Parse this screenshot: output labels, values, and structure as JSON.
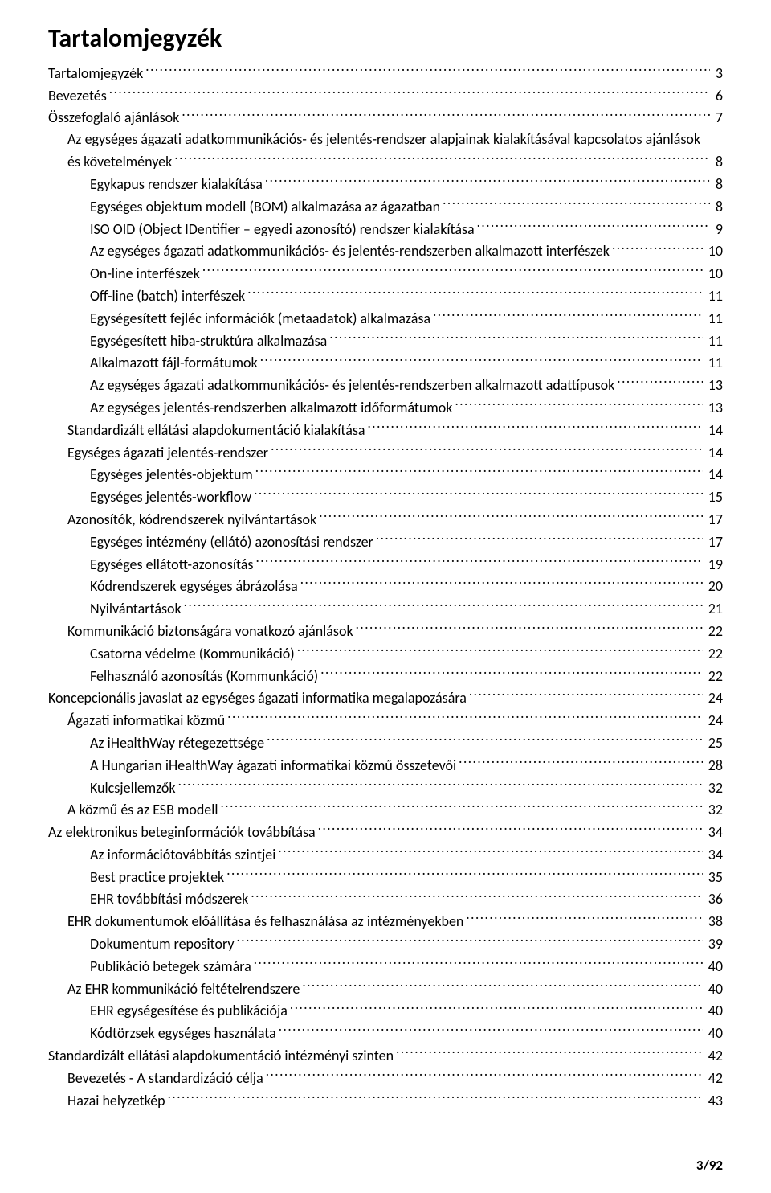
{
  "title": "Tartalomjegyzék",
  "page_footer": "3/92",
  "dot_leader_color": "#000000",
  "text_color": "#000000",
  "background_color": "#ffffff",
  "title_fontsize": 32,
  "line_fontsize": 18,
  "font_family": "Calibri",
  "entries": [
    {
      "indent": 0,
      "label": "Tartalomjegyzék",
      "page": "3"
    },
    {
      "indent": 0,
      "label": "Bevezetés",
      "page": "6"
    },
    {
      "indent": 0,
      "label": "Összefoglaló ajánlások",
      "page": "7"
    },
    {
      "indent": 1,
      "label": "Az egységes ágazati adatkommunikációs- és jelentés-rendszer alapjainak kialakításával kapcsolatos ajánlások és követelmények",
      "page": "8"
    },
    {
      "indent": 2,
      "label": "Egykapus rendszer kialakítása",
      "page": "8"
    },
    {
      "indent": 2,
      "label": "Egységes objektum modell (BOM) alkalmazása az ágazatban",
      "page": "8"
    },
    {
      "indent": 2,
      "label": "ISO OID (Object IDentifier – egyedi azonosító) rendszer kialakítása",
      "page": "9"
    },
    {
      "indent": 2,
      "label": "Az egységes ágazati adatkommunikációs- és jelentés-rendszerben alkalmazott interfészek",
      "page": "10"
    },
    {
      "indent": 2,
      "label": "On-line interfészek",
      "page": "10"
    },
    {
      "indent": 2,
      "label": "Off-line (batch) interfészek",
      "page": "11"
    },
    {
      "indent": 2,
      "label": "Egységesített fejléc információk (metaadatok) alkalmazása",
      "page": "11"
    },
    {
      "indent": 2,
      "label": "Egységesített hiba-struktúra alkalmazása",
      "page": "11"
    },
    {
      "indent": 2,
      "label": "Alkalmazott fájl-formátumok",
      "page": "11"
    },
    {
      "indent": 2,
      "label": "Az egységes ágazati adatkommunikációs- és jelentés-rendszerben alkalmazott adattípusok",
      "page": "13"
    },
    {
      "indent": 2,
      "label": "Az egységes jelentés-rendszerben alkalmazott időformátumok",
      "page": "13"
    },
    {
      "indent": 1,
      "label": "Standardizált ellátási alapdokumentáció kialakítása",
      "page": "14"
    },
    {
      "indent": 1,
      "label": "Egységes ágazati jelentés-rendszer",
      "page": "14"
    },
    {
      "indent": 2,
      "label": "Egységes jelentés-objektum",
      "page": "14"
    },
    {
      "indent": 2,
      "label": "Egységes jelentés-workflow",
      "page": "15"
    },
    {
      "indent": 1,
      "label": "Azonosítók, kódrendszerek nyilvántartások",
      "page": "17"
    },
    {
      "indent": 2,
      "label": "Egységes intézmény (ellátó) azonosítási rendszer",
      "page": "17"
    },
    {
      "indent": 2,
      "label": "Egységes ellátott-azonosítás",
      "page": "19"
    },
    {
      "indent": 2,
      "label": "Kódrendszerek egységes ábrázolása",
      "page": "20"
    },
    {
      "indent": 2,
      "label": "Nyilvántartások",
      "page": "21"
    },
    {
      "indent": 1,
      "label": "Kommunikáció biztonságára vonatkozó ajánlások",
      "page": "22"
    },
    {
      "indent": 2,
      "label": "Csatorna védelme (Kommunikáció)",
      "page": "22"
    },
    {
      "indent": 2,
      "label": "Felhasználó azonosítás (Kommunkáció)",
      "page": "22"
    },
    {
      "indent": 0,
      "label": "Koncepcionális javaslat az egységes ágazati informatika megalapozására",
      "page": "24"
    },
    {
      "indent": 1,
      "label": "Ágazati informatikai közmű",
      "page": "24"
    },
    {
      "indent": 2,
      "label": "Az iHealthWay rétegezettsége",
      "page": "25"
    },
    {
      "indent": 2,
      "label": "A Hungarian iHealthWay ágazati informatikai közmű összetevői",
      "page": "28"
    },
    {
      "indent": 2,
      "label": "Kulcsjellemzők",
      "page": "32"
    },
    {
      "indent": 1,
      "label": "A közmű és az ESB modell",
      "page": "32"
    },
    {
      "indent": 0,
      "label": "Az elektronikus beteginformációk továbbítása",
      "page": "34"
    },
    {
      "indent": 2,
      "label": "Az információtovábbítás szintjei",
      "page": "34"
    },
    {
      "indent": 2,
      "label": "Best practice projektek",
      "page": "35"
    },
    {
      "indent": 2,
      "label": "EHR továbbítási módszerek",
      "page": "36"
    },
    {
      "indent": 1,
      "label": "EHR dokumentumok előállítása és felhasználása az intézményekben",
      "page": "38"
    },
    {
      "indent": 2,
      "label": "Dokumentum repository",
      "page": "39"
    },
    {
      "indent": 2,
      "label": "Publikáció betegek számára",
      "page": "40"
    },
    {
      "indent": 1,
      "label": "Az EHR kommunikáció feltételrendszere",
      "page": "40"
    },
    {
      "indent": 2,
      "label": "EHR egységesítése és publikációja",
      "page": "40"
    },
    {
      "indent": 2,
      "label": "Kódtörzsek egységes használata",
      "page": "40"
    },
    {
      "indent": 0,
      "label": "Standardizált ellátási alapdokumentáció intézményi szinten",
      "page": "42"
    },
    {
      "indent": 1,
      "label": "Bevezetés - A standardizáció célja",
      "page": "42"
    },
    {
      "indent": 1,
      "label": "Hazai helyzetkép",
      "page": "43"
    }
  ]
}
